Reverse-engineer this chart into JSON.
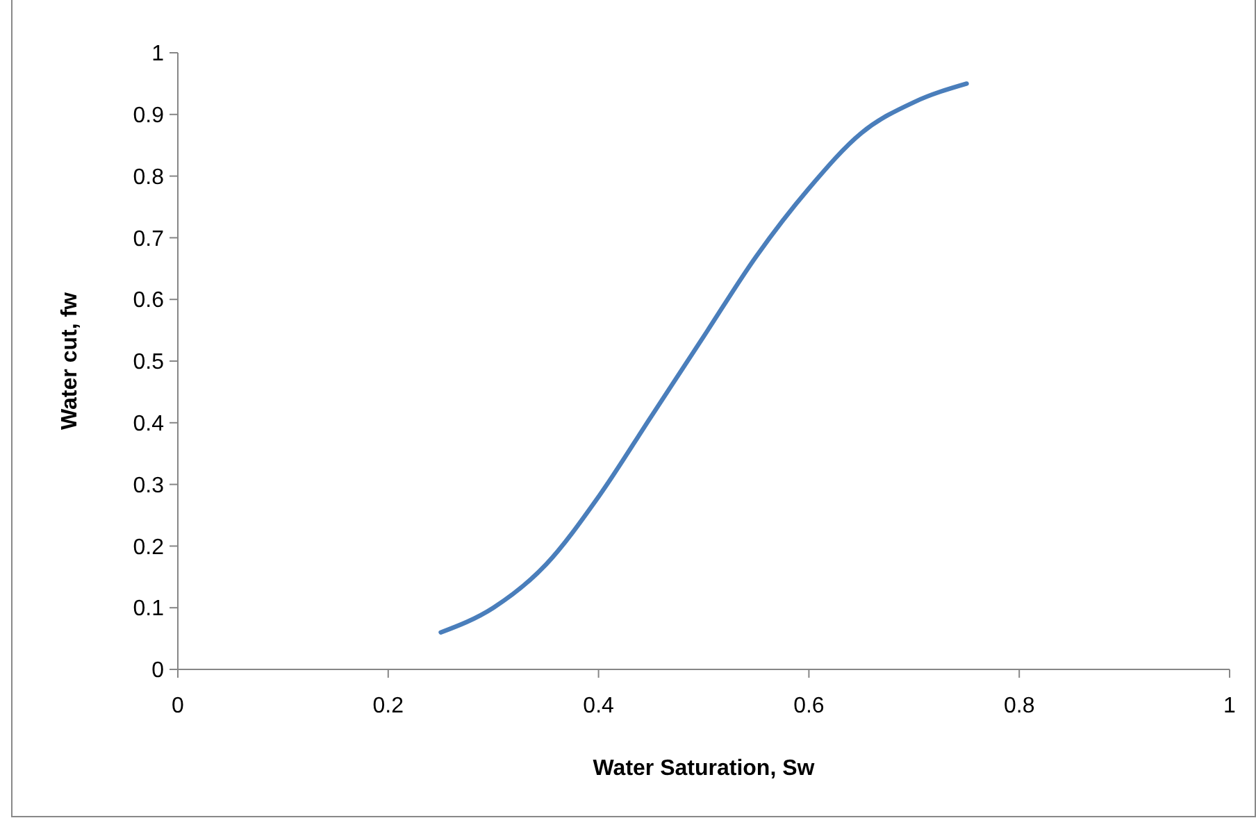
{
  "chart_data": {
    "type": "line",
    "xlabel": "Water Saturation, Sw",
    "ylabel": "Water cut, fw",
    "x": [
      0.25,
      0.3,
      0.35,
      0.4,
      0.45,
      0.5,
      0.55,
      0.6,
      0.65,
      0.7,
      0.75
    ],
    "series": [
      {
        "color": "#4a7ebb",
        "values": [
          0.06,
          0.1,
          0.17,
          0.28,
          0.41,
          0.54,
          0.67,
          0.78,
          0.87,
          0.92,
          0.95
        ]
      }
    ],
    "xlim": [
      0,
      1
    ],
    "xticks": [
      0,
      0.2,
      0.4,
      0.6,
      0.8,
      1
    ],
    "ylim": [
      0,
      1
    ],
    "yticks": [
      0,
      0.1,
      0.2,
      0.3,
      0.4,
      0.5,
      0.6,
      0.7,
      0.8,
      0.9,
      1
    ],
    "grid": false,
    "marker": "none",
    "line_style": "solid"
  }
}
